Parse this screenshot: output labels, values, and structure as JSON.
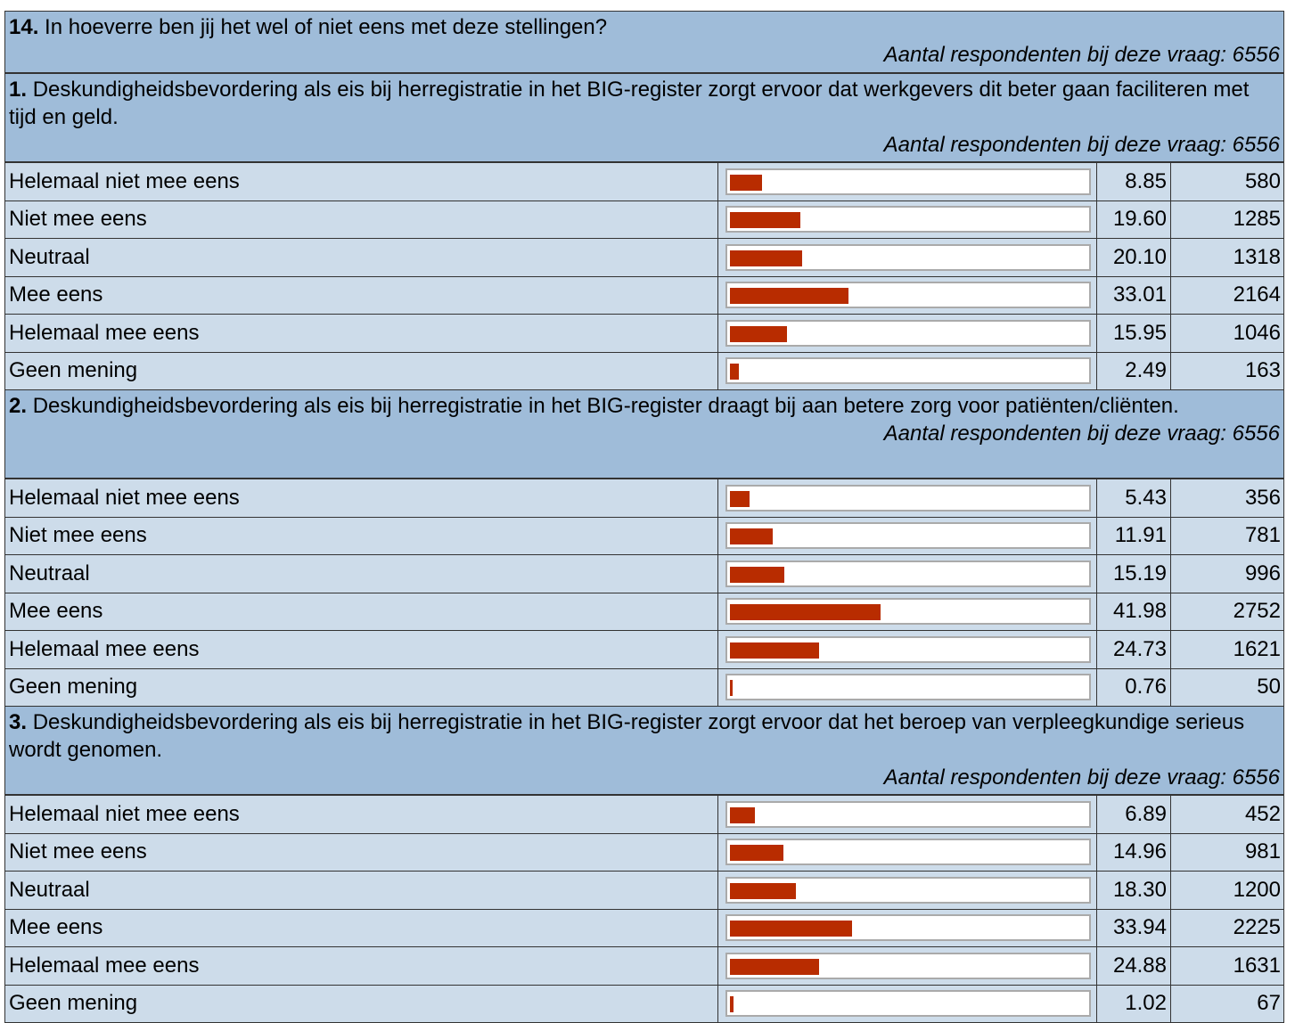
{
  "header": {
    "number": "14.",
    "text": "In hoeverre ben jij het wel of niet eens met deze stellingen?",
    "respondents": "Aantal respondenten bij deze vraag: 6556"
  },
  "questions": [
    {
      "number": "1.",
      "text": "Deskundigheidsbevordering als eis bij herregistratie in het BIG-register zorgt ervoor dat werkgevers dit beter gaan faciliteren met tijd en geld.",
      "respondents": "Aantal respondenten bij deze vraag: 6556",
      "categories": [
        "Helemaal niet mee eens",
        "Niet mee eens",
        "Neutraal",
        "Mee eens",
        "Helemaal mee eens",
        "Geen mening"
      ],
      "values": [
        8.85,
        19.6,
        20.1,
        33.01,
        15.95,
        2.49
      ],
      "value_labels": [
        "8.85",
        "19.60",
        "20.10",
        "33.01",
        "15.95",
        "2.49"
      ],
      "counts": [
        580,
        1285,
        1318,
        2164,
        1046,
        163
      ]
    },
    {
      "number": "2.",
      "text": "Deskundigheidsbevordering als eis bij herregistratie in het BIG-register draagt bij aan betere zorg voor patiënten/cliënten.",
      "respondents": "Aantal respondenten bij deze vraag: 6556",
      "categories": [
        "Helemaal niet mee eens",
        "Niet mee eens",
        "Neutraal",
        "Mee eens",
        "Helemaal mee eens",
        "Geen mening"
      ],
      "values": [
        5.43,
        11.91,
        15.19,
        41.98,
        24.73,
        0.76
      ],
      "value_labels": [
        "5.43",
        "11.91",
        "15.19",
        "41.98",
        "24.73",
        "0.76"
      ],
      "counts": [
        356,
        781,
        996,
        2752,
        1621,
        50
      ]
    },
    {
      "number": "3.",
      "text": "Deskundigheidsbevordering als eis bij herregistratie in het BIG-register zorgt ervoor dat het beroep van verpleegkundige serieus wordt genomen.",
      "respondents": "Aantal respondenten bij deze vraag: 6556",
      "categories": [
        "Helemaal niet mee eens",
        "Niet mee eens",
        "Neutraal",
        "Mee eens",
        "Helemaal mee eens",
        "Geen mening"
      ],
      "values": [
        6.89,
        14.96,
        18.3,
        33.94,
        24.88,
        1.02
      ],
      "value_labels": [
        "6.89",
        "14.96",
        "18.30",
        "33.94",
        "24.88",
        "1.02"
      ],
      "counts": [
        452,
        981,
        1200,
        2225,
        1631,
        67
      ]
    }
  ]
}
